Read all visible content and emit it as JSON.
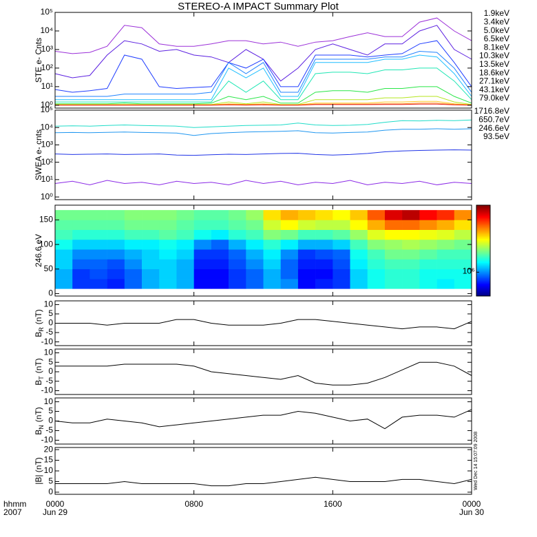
{
  "title": "STEREO-A IMPACT Summary Plot",
  "timestamp": "Wed Dec 14 15:07:09 2008",
  "x_axis": {
    "xlim": [
      0,
      24
    ],
    "xticks": [
      {
        "value": 0,
        "label": "0000"
      },
      {
        "value": 8,
        "label": "0800"
      },
      {
        "value": 16,
        "label": "1600"
      },
      {
        "value": 24,
        "label": "0000"
      }
    ],
    "corner_labels": [
      "hhmm",
      "2007"
    ],
    "dates": [
      "Jun 29",
      "Jun 30"
    ]
  },
  "chart_data": [
    {
      "type": "line",
      "ylabel": "STE e- Cnts",
      "log_y": true,
      "ylim": [
        0.7,
        100000
      ],
      "yticks": [
        {
          "value": 1,
          "label": "10⁰"
        },
        {
          "value": 10,
          "label": "10¹"
        },
        {
          "value": 100,
          "label": "10²"
        },
        {
          "value": 1000,
          "label": "10³"
        },
        {
          "value": 10000,
          "label": "10⁴"
        },
        {
          "value": 100000,
          "label": "10⁵"
        }
      ],
      "x": [
        0,
        1,
        2,
        3,
        4,
        5,
        6,
        7,
        8,
        9,
        10,
        11,
        12,
        13,
        14,
        15,
        16,
        17,
        18,
        19,
        20,
        21,
        22,
        23,
        24
      ],
      "series": [
        {
          "name": "1.9keV",
          "color": "#9a2ed8",
          "values": [
            800,
            600,
            700,
            1500,
            20000,
            15000,
            2000,
            1500,
            1500,
            2000,
            3000,
            3000,
            2000,
            2500,
            1500,
            2500,
            3000,
            5000,
            8000,
            5000,
            5000,
            30000,
            50000,
            10000,
            3000
          ]
        },
        {
          "name": "3.4keV",
          "color": "#5a1ee0",
          "values": [
            50,
            30,
            40,
            500,
            3000,
            2000,
            800,
            1000,
            500,
            400,
            200,
            1000,
            300,
            20,
            100,
            1000,
            2000,
            1000,
            500,
            2000,
            2000,
            10000,
            20000,
            1000,
            300
          ]
        },
        {
          "name": "5.0keV",
          "color": "#1e3cff",
          "values": [
            7,
            5,
            6,
            8,
            500,
            300,
            10,
            8,
            9,
            10,
            200,
            100,
            300,
            10,
            10,
            500,
            500,
            500,
            400,
            500,
            600,
            2000,
            3000,
            200,
            10
          ]
        },
        {
          "name": "6.5keV",
          "color": "#1e82ff",
          "values": [
            3,
            3,
            3,
            3,
            4,
            4,
            4,
            4,
            4,
            5,
            200,
            50,
            200,
            5,
            5,
            300,
            300,
            300,
            300,
            400,
            400,
            800,
            700,
            100,
            5
          ]
        },
        {
          "name": "8.1keV",
          "color": "#1ebeff",
          "values": [
            2,
            2,
            2,
            2,
            2,
            2,
            2,
            2,
            2,
            2,
            100,
            30,
            100,
            3,
            3,
            200,
            200,
            200,
            200,
            300,
            300,
            500,
            400,
            50,
            3
          ]
        },
        {
          "name": "10.3keV",
          "color": "#1ee6b4",
          "values": [
            1.5,
            1.5,
            1.5,
            1.5,
            1.5,
            1.5,
            1.5,
            1.5,
            1.5,
            1.5,
            20,
            5,
            20,
            2,
            2,
            50,
            60,
            60,
            50,
            80,
            80,
            100,
            100,
            20,
            2
          ]
        },
        {
          "name": "13.5keV",
          "color": "#28e646",
          "values": [
            1.2,
            1.2,
            1.2,
            1.2,
            1.3,
            1.2,
            1.2,
            1.2,
            1.2,
            1.3,
            3,
            2,
            3,
            1.3,
            1.3,
            5,
            6,
            6,
            5,
            8,
            8,
            10,
            10,
            3,
            1.3
          ]
        },
        {
          "name": "18.6keV",
          "color": "#b4e61e",
          "values": [
            1.1,
            1.1,
            1.1,
            1.1,
            1.1,
            1.1,
            1.1,
            1.1,
            1.1,
            1.1,
            1.5,
            1.2,
            1.5,
            1.1,
            1.1,
            2,
            2,
            2,
            2,
            2.5,
            2.5,
            3,
            3,
            1.5,
            1.1
          ]
        },
        {
          "name": "27.1keV",
          "color": "#ffc81e",
          "values": [
            1.05,
            1.05,
            1.05,
            1.05,
            1.05,
            1.05,
            1.05,
            1.05,
            1.05,
            1.05,
            1.2,
            1.1,
            1.2,
            1.05,
            1.05,
            1.3,
            1.3,
            1.3,
            1.3,
            1.5,
            1.5,
            1.6,
            1.6,
            1.2,
            1.05
          ]
        },
        {
          "name": "43.1keV",
          "color": "#ff8c1e",
          "values": [
            1.02,
            1.02,
            1.02,
            1.02,
            1.02,
            1.02,
            1.02,
            1.02,
            1.02,
            1.02,
            1.1,
            1.05,
            1.1,
            1.02,
            1.02,
            1.15,
            1.15,
            1.15,
            1.15,
            1.2,
            1.2,
            1.3,
            1.3,
            1.1,
            1.02
          ]
        },
        {
          "name": "79.0keV",
          "color": "#e61e1e",
          "values": [
            1.01,
            1.01,
            1.01,
            1.01,
            1.01,
            1.01,
            1.01,
            1.01,
            1.01,
            1.01,
            1.05,
            1.02,
            1.05,
            1.01,
            1.01,
            1.08,
            1.08,
            1.08,
            1.08,
            1.1,
            1.1,
            1.15,
            1.15,
            1.05,
            1.01
          ]
        }
      ]
    },
    {
      "type": "line",
      "ylabel": "SWEA e- cnts",
      "log_y": true,
      "ylim": [
        0.7,
        100000
      ],
      "yticks": [
        {
          "value": 1,
          "label": "10⁰"
        },
        {
          "value": 10,
          "label": "10¹"
        },
        {
          "value": 100,
          "label": "10²"
        },
        {
          "value": 1000,
          "label": "10³"
        },
        {
          "value": 10000,
          "label": "10⁴"
        },
        {
          "value": 100000,
          "label": "10⁵"
        }
      ],
      "x": [
        0,
        1,
        2,
        3,
        4,
        5,
        6,
        7,
        8,
        9,
        10,
        11,
        12,
        13,
        14,
        15,
        16,
        17,
        18,
        19,
        20,
        21,
        22,
        23,
        24
      ],
      "series": [
        {
          "name": "1716.8eV",
          "color": "#8a28e6",
          "values": [
            6,
            8,
            5,
            9,
            6,
            7,
            5,
            8,
            6,
            7,
            5,
            9,
            6,
            8,
            5,
            7,
            6,
            9,
            5,
            7,
            6,
            8,
            5,
            7,
            6
          ]
        },
        {
          "name": "650.7eV",
          "color": "#1e32e6",
          "values": [
            300,
            280,
            290,
            300,
            280,
            290,
            300,
            260,
            250,
            270,
            290,
            280,
            300,
            320,
            330,
            280,
            260,
            280,
            320,
            400,
            450,
            480,
            500,
            520,
            500
          ]
        },
        {
          "name": "246.6eV",
          "color": "#1e96f0",
          "values": [
            5000,
            5200,
            5000,
            5300,
            5500,
            5200,
            5000,
            4800,
            3500,
            4500,
            5000,
            5500,
            5800,
            6000,
            6500,
            5000,
            4800,
            5200,
            5500,
            7000,
            8000,
            8000,
            8500,
            8000,
            8500
          ]
        },
        {
          "name": "93.5eV",
          "color": "#1edcc8",
          "values": [
            12000,
            12500,
            12000,
            13000,
            14000,
            13000,
            12500,
            12000,
            10000,
            11000,
            12000,
            13000,
            13500,
            14000,
            18000,
            14000,
            13000,
            13500,
            15000,
            20000,
            25000,
            24000,
            26000,
            25000,
            27000
          ]
        }
      ]
    },
    {
      "type": "heatmap",
      "ylabel": "246.6 eV",
      "ylim": [
        -5,
        180
      ],
      "yticks": [
        0,
        50,
        100,
        150
      ],
      "x_edges": [
        0,
        1,
        2,
        3,
        4,
        5,
        6,
        7,
        8,
        9,
        10,
        11,
        12,
        13,
        14,
        15,
        16,
        17,
        18,
        19,
        20,
        21,
        22,
        23,
        24
      ],
      "y_edges": [
        10,
        30,
        50,
        70,
        90,
        110,
        130,
        150,
        170
      ],
      "clim": [
        500000,
        7000000
      ],
      "log_c": true,
      "colormap": "jet",
      "cticks": [
        {
          "value": 1000000,
          "label": "10⁶"
        }
      ],
      "values": [
        [
          1100000.0,
          800000.0,
          800000.0,
          750000.0,
          900000.0,
          1100000.0,
          1200000.0,
          1100000.0,
          700000.0,
          700000.0,
          800000.0,
          900000.0,
          1100000.0,
          1000000.0,
          700000.0,
          750000.0,
          800000.0,
          1200000.0,
          1400000.0,
          1500000.0,
          1500000.0,
          1400000.0,
          1300000.0,
          1400000.0
        ],
        [
          1100000.0,
          800000.0,
          850000.0,
          800000.0,
          900000.0,
          1100000.0,
          1200000.0,
          1100000.0,
          700000.0,
          700000.0,
          800000.0,
          900000.0,
          1100000.0,
          900000.0,
          700000.0,
          700000.0,
          800000.0,
          1200000.0,
          1400000.0,
          1500000.0,
          1500000.0,
          1400000.0,
          1400000.0,
          1400000.0
        ],
        [
          1200000.0,
          900000.0,
          900000.0,
          850000.0,
          1000000.0,
          1200000.0,
          1200000.0,
          1100000.0,
          750000.0,
          750000.0,
          850000.0,
          1000000.0,
          1200000.0,
          900000.0,
          750000.0,
          750000.0,
          850000.0,
          1300000.0,
          1500000.0,
          1600000.0,
          1600000.0,
          1500000.0,
          1500000.0,
          1500000.0
        ],
        [
          1200000.0,
          1000000.0,
          1000000.0,
          1000000.0,
          1100000.0,
          1200000.0,
          1300000.0,
          1200000.0,
          800000.0,
          800000.0,
          900000.0,
          1100000.0,
          1300000.0,
          1000000.0,
          800000.0,
          850000.0,
          900000.0,
          1400000.0,
          1600000.0,
          1800000.0,
          1800000.0,
          1700000.0,
          1600000.0,
          1600000.0
        ],
        [
          1400000.0,
          1200000.0,
          1200000.0,
          1200000.0,
          1300000.0,
          1300000.0,
          1400000.0,
          1300000.0,
          1000000.0,
          900000.0,
          1100000.0,
          1300000.0,
          1500000.0,
          1300000.0,
          1100000.0,
          1100000.0,
          1200000.0,
          1600000.0,
          1900000.0,
          2000000.0,
          2100000.0,
          2000000.0,
          1900000.0,
          1800000.0
        ],
        [
          1600000.0,
          1500000.0,
          1500000.0,
          1500000.0,
          1600000.0,
          1600000.0,
          1700000.0,
          1600000.0,
          1400000.0,
          1300000.0,
          1500000.0,
          1600000.0,
          1900000.0,
          1800000.0,
          1600000.0,
          1600000.0,
          1700000.0,
          2000000.0,
          2400000.0,
          2600000.0,
          2600000.0,
          2500000.0,
          2400000.0,
          2200000.0
        ],
        [
          1700000.0,
          1700000.0,
          1700000.0,
          1700000.0,
          1800000.0,
          1800000.0,
          1800000.0,
          1700000.0,
          1600000.0,
          1600000.0,
          1700000.0,
          1800000.0,
          2300000.0,
          2600000.0,
          2300000.0,
          2200000.0,
          2200000.0,
          2600000.0,
          3200000.0,
          3800000.0,
          3800000.0,
          3500000.0,
          3200000.0,
          2800000.0
        ],
        [
          1800000.0,
          1800000.0,
          1800000.0,
          1800000.0,
          1900000.0,
          1900000.0,
          1900000.0,
          1800000.0,
          1700000.0,
          1700000.0,
          1800000.0,
          2000000.0,
          2800000.0,
          3200000.0,
          3000000.0,
          2800000.0,
          2600000.0,
          3000000.0,
          4000000.0,
          5500000.0,
          6000000.0,
          5000000.0,
          4500000.0,
          3500000.0
        ]
      ]
    },
    {
      "type": "line",
      "ylabel": "B",
      "ylabel_sub": "R",
      "ylabel_unit": "(nT)",
      "ylim": [
        -12,
        12
      ],
      "yticks": [
        -10,
        -5,
        0,
        5,
        10
      ],
      "x": [
        0,
        1,
        2,
        3,
        4,
        5,
        6,
        7,
        8,
        9,
        10,
        11,
        12,
        13,
        14,
        15,
        16,
        17,
        18,
        19,
        20,
        21,
        22,
        23,
        24
      ],
      "series": [
        {
          "color": "#000000",
          "values": [
            0,
            0,
            0,
            -1,
            0,
            0,
            0,
            2,
            2,
            0,
            -1,
            -1,
            -1,
            0,
            2,
            2,
            1,
            0,
            -1,
            -2,
            -3,
            -2,
            -2,
            -3,
            1
          ]
        }
      ]
    },
    {
      "type": "line",
      "ylabel": "B",
      "ylabel_sub": "T",
      "ylabel_unit": "(nT)",
      "ylim": [
        -12,
        12
      ],
      "yticks": [
        -10,
        -5,
        0,
        5,
        10
      ],
      "x": [
        0,
        1,
        2,
        3,
        4,
        5,
        6,
        7,
        8,
        9,
        10,
        11,
        12,
        13,
        14,
        15,
        16,
        17,
        18,
        19,
        20,
        21,
        22,
        23,
        24
      ],
      "series": [
        {
          "color": "#000000",
          "values": [
            3,
            3,
            3,
            3,
            4,
            4,
            4,
            4,
            3,
            0,
            -1,
            -2,
            -3,
            -4,
            -2,
            -6,
            -7,
            -7,
            -6,
            -3,
            1,
            5,
            5,
            3,
            -2
          ]
        }
      ]
    },
    {
      "type": "line",
      "ylabel": "B",
      "ylabel_sub": "N",
      "ylabel_unit": "(nT)",
      "ylim": [
        -12,
        12
      ],
      "yticks": [
        -10,
        -5,
        0,
        5,
        10
      ],
      "x": [
        0,
        1,
        2,
        3,
        4,
        5,
        6,
        7,
        8,
        9,
        10,
        11,
        12,
        13,
        14,
        15,
        16,
        17,
        18,
        19,
        20,
        21,
        22,
        23,
        24
      ],
      "series": [
        {
          "color": "#000000",
          "values": [
            0,
            -1,
            -1,
            1,
            0,
            -1,
            -3,
            -2,
            -1,
            0,
            1,
            2,
            3,
            3,
            5,
            4,
            2,
            0,
            1,
            -4,
            2,
            3,
            3,
            2,
            6
          ]
        }
      ]
    },
    {
      "type": "line",
      "ylabel": "|B| (nT)",
      "ylim": [
        -1,
        21
      ],
      "yticks": [
        0,
        5,
        10,
        15,
        20
      ],
      "x": [
        0,
        1,
        2,
        3,
        4,
        5,
        6,
        7,
        8,
        9,
        10,
        11,
        12,
        13,
        14,
        15,
        16,
        17,
        18,
        19,
        20,
        21,
        22,
        23,
        24
      ],
      "series": [
        {
          "color": "#000000",
          "values": [
            4,
            4,
            4,
            4,
            5,
            4,
            4,
            4,
            4,
            3,
            3,
            4,
            4,
            5,
            6,
            7,
            6,
            5,
            5,
            5,
            6,
            6,
            5,
            4,
            6
          ]
        }
      ]
    }
  ]
}
